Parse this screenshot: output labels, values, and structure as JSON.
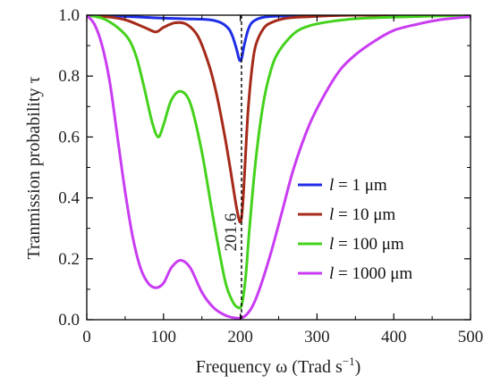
{
  "chart_data": {
    "type": "line",
    "title": "",
    "xlabel": "Frequency ω (Trad s⁻¹)",
    "xlabel_main": "Frequency ω (Trad s",
    "xlabel_sup": "−1",
    "xlabel_close": ")",
    "ylabel": "Tranmission probability τ",
    "xlim": [
      0,
      500
    ],
    "ylim": [
      0,
      1.0
    ],
    "xticks": [
      "0",
      "100",
      "200",
      "300",
      "400",
      "500"
    ],
    "xtick_values": [
      0,
      100,
      200,
      300,
      400,
      500
    ],
    "yticks": [
      "0.0",
      "0.2",
      "0.4",
      "0.6",
      "0.8",
      "1.0"
    ],
    "ytick_values": [
      0,
      0.2,
      0.4,
      0.6,
      0.8,
      1.0
    ],
    "grid": false,
    "legend_position": "right",
    "annotation": {
      "text": "201.6",
      "x": 201.6
    },
    "series": [
      {
        "name": "l = 1 μm",
        "legend_var": "l",
        "legend_rest": " = 1 μm",
        "color": "#1f2ee6",
        "x": [
          0,
          25,
          50,
          75,
          100,
          130,
          160,
          175,
          185,
          190,
          195,
          198,
          200,
          202,
          205,
          210,
          215,
          225,
          240,
          270,
          320,
          400,
          500
        ],
        "y": [
          1.0,
          0.998,
          0.996,
          0.993,
          0.99,
          0.988,
          0.985,
          0.975,
          0.955,
          0.93,
          0.89,
          0.86,
          0.85,
          0.86,
          0.9,
          0.95,
          0.975,
          0.99,
          0.996,
          0.998,
          1.0,
          1.0,
          1.0
        ]
      },
      {
        "name": "l = 10 μm",
        "legend_var": "l",
        "legend_rest": " = 10 μm",
        "color": "#a52a1a",
        "x": [
          0,
          25,
          50,
          75,
          90,
          100,
          115,
          130,
          145,
          160,
          170,
          180,
          188,
          195,
          200,
          203,
          206,
          210,
          215,
          220,
          230,
          240,
          260,
          290,
          350,
          500
        ],
        "y": [
          1.0,
          0.995,
          0.985,
          0.96,
          0.945,
          0.96,
          0.975,
          0.97,
          0.93,
          0.83,
          0.73,
          0.6,
          0.48,
          0.37,
          0.32,
          0.37,
          0.5,
          0.68,
          0.82,
          0.9,
          0.955,
          0.975,
          0.99,
          0.995,
          1.0,
          1.0
        ]
      },
      {
        "name": "l = 100 μm",
        "legend_var": "l",
        "legend_rest": " = 100 μm",
        "color": "#44d21c",
        "x": [
          0,
          20,
          40,
          55,
          65,
          75,
          85,
          93,
          100,
          110,
          122,
          135,
          150,
          165,
          180,
          190,
          197,
          202,
          207,
          212,
          220,
          230,
          240,
          250,
          270,
          290,
          320,
          360,
          420,
          500
        ],
        "y": [
          1.0,
          0.99,
          0.96,
          0.92,
          0.86,
          0.76,
          0.65,
          0.6,
          0.64,
          0.72,
          0.75,
          0.71,
          0.55,
          0.33,
          0.13,
          0.06,
          0.04,
          0.05,
          0.14,
          0.3,
          0.52,
          0.71,
          0.82,
          0.88,
          0.94,
          0.965,
          0.98,
          0.99,
          0.995,
          1.0
        ]
      },
      {
        "name": "l = 1000 μm",
        "legend_var": "l",
        "legend_rest": " = 1000 μm",
        "color": "#c93cf2",
        "x": [
          0,
          10,
          20,
          30,
          40,
          50,
          60,
          70,
          80,
          90,
          100,
          110,
          122,
          135,
          150,
          165,
          180,
          195,
          205,
          215,
          225,
          240,
          255,
          270,
          290,
          310,
          330,
          350,
          375,
          400,
          430,
          460,
          500
        ],
        "y": [
          1.0,
          0.97,
          0.9,
          0.78,
          0.6,
          0.42,
          0.27,
          0.17,
          0.12,
          0.105,
          0.12,
          0.17,
          0.195,
          0.17,
          0.09,
          0.04,
          0.015,
          0.005,
          0.01,
          0.04,
          0.1,
          0.22,
          0.36,
          0.5,
          0.64,
          0.74,
          0.82,
          0.87,
          0.915,
          0.95,
          0.97,
          0.985,
          0.995
        ]
      }
    ]
  }
}
